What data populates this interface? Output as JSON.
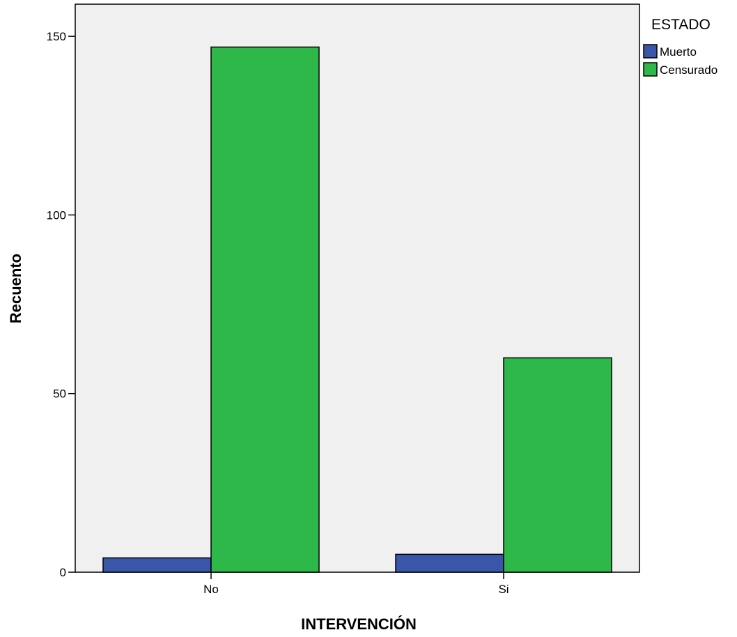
{
  "chart_data": {
    "type": "bar",
    "xlabel": "INTERVENCIÓN",
    "ylabel": "Recuento",
    "categories": [
      "No",
      "Si"
    ],
    "series": [
      {
        "name": "Muerto",
        "values": [
          4,
          5
        ]
      },
      {
        "name": "Censurado",
        "values": [
          147,
          60
        ]
      }
    ],
    "ylim": [
      0,
      159
    ],
    "yticks": [
      0,
      50,
      100,
      150
    ],
    "grid": false,
    "legend": {
      "title": "ESTADO",
      "placement": "right"
    },
    "colors": {
      "Muerto": "#3a56a8",
      "Censurado": "#2fb84a",
      "plot_background": "#f0f0f0"
    }
  }
}
